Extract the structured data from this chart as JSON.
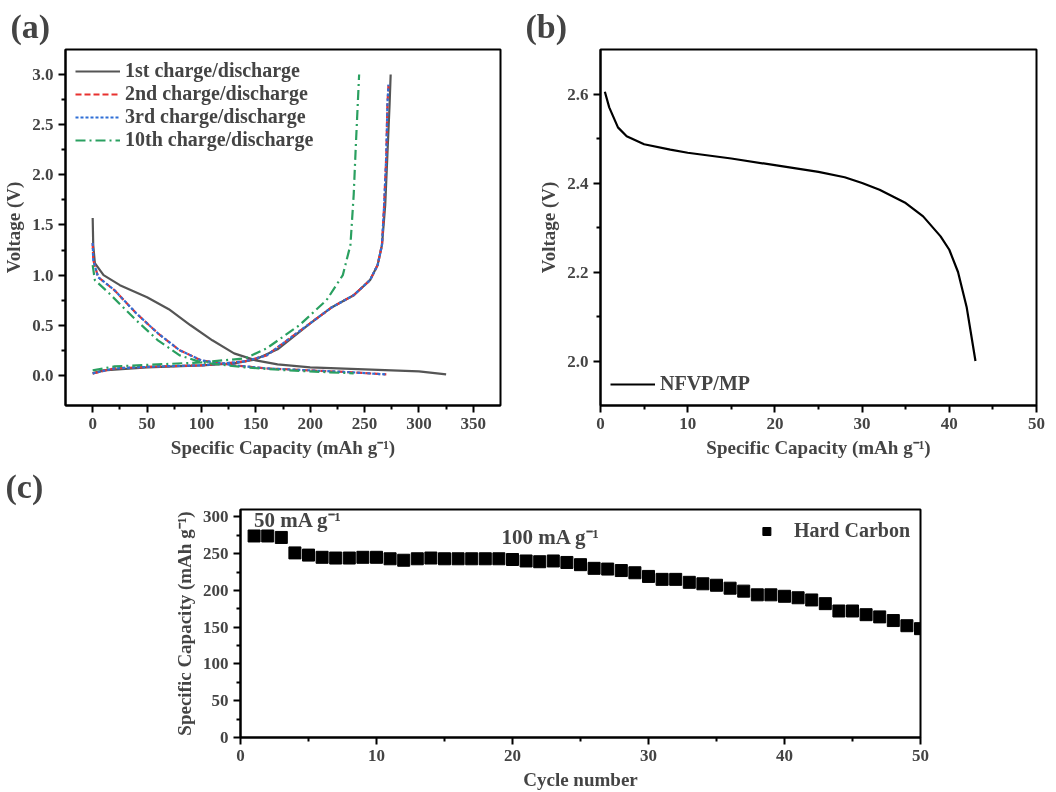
{
  "chart_data": [
    {
      "type": "line",
      "title": "(a)",
      "xlabel": "Specific Capacity (mAh g⁻¹)",
      "ylabel": "Voltage (V)",
      "xlim": [
        -25,
        375
      ],
      "xticks": [
        0,
        50,
        100,
        150,
        200,
        250,
        300,
        350
      ],
      "ylim": [
        -0.3,
        3.25
      ],
      "yticks": [
        {
          "value": 0,
          "label": "0.0"
        },
        0.5,
        {
          "value": 1,
          "label": "1.0"
        },
        1.5,
        {
          "value": 2,
          "label": "2.0"
        },
        2.5,
        {
          "value": 3,
          "label": "3.0"
        }
      ],
      "legend": "top left",
      "series": [
        {
          "name": "1st charge/discharge",
          "color": "#555555",
          "line_style": "solid",
          "x": [
            0,
            0.5,
            2,
            10,
            25,
            50,
            70,
            90,
            110,
            130,
            150,
            170,
            200,
            250,
            300,
            325,
            null,
            0,
            10,
            50,
            100,
            130,
            150,
            170,
            200,
            220,
            240,
            255,
            262,
            266,
            269,
            271,
            273,
            274
          ],
          "values": [
            1.57,
            1.3,
            1.12,
            1.0,
            0.9,
            0.78,
            0.66,
            0.5,
            0.35,
            0.22,
            0.15,
            0.11,
            0.08,
            0.06,
            0.04,
            0.01,
            null,
            0.02,
            0.05,
            0.08,
            0.1,
            0.12,
            0.16,
            0.26,
            0.52,
            0.68,
            0.8,
            0.95,
            1.1,
            1.3,
            1.7,
            2.2,
            2.7,
            3.0
          ]
        },
        {
          "name": "2nd charge/discharge",
          "color": "#e8312f",
          "line_style": "dashed",
          "x": [
            0,
            0.5,
            5,
            20,
            40,
            60,
            80,
            100,
            130,
            160,
            200,
            240,
            270,
            null,
            0,
            20,
            60,
            100,
            140,
            160,
            200,
            220,
            240,
            255,
            262,
            266,
            268,
            270,
            271,
            272
          ],
          "values": [
            1.32,
            1.15,
            0.98,
            0.85,
            0.62,
            0.42,
            0.25,
            0.15,
            0.1,
            0.07,
            0.05,
            0.03,
            0.01,
            null,
            0.02,
            0.07,
            0.09,
            0.1,
            0.14,
            0.2,
            0.52,
            0.68,
            0.8,
            0.95,
            1.1,
            1.3,
            1.7,
            2.2,
            2.7,
            2.9
          ]
        },
        {
          "name": "3rd charge/discharge",
          "color": "#2f6fd6",
          "line_style": "dotted",
          "x": [
            0,
            0.5,
            5,
            20,
            40,
            60,
            80,
            100,
            130,
            160,
            200,
            240,
            270,
            null,
            0,
            20,
            60,
            100,
            140,
            160,
            200,
            220,
            240,
            255,
            262,
            266,
            268,
            270,
            271,
            272
          ],
          "values": [
            1.32,
            1.15,
            0.98,
            0.85,
            0.62,
            0.42,
            0.25,
            0.15,
            0.1,
            0.07,
            0.05,
            0.03,
            0.01,
            null,
            0.02,
            0.07,
            0.09,
            0.1,
            0.14,
            0.2,
            0.52,
            0.68,
            0.8,
            0.95,
            1.1,
            1.3,
            1.7,
            2.2,
            2.7,
            2.9
          ]
        },
        {
          "name": "10th charge/discharge",
          "color": "#2aa060",
          "line_style": "dashdot",
          "x": [
            0,
            2,
            15,
            40,
            60,
            80,
            100,
            140,
            180,
            240,
            null,
            0,
            20,
            60,
            100,
            140,
            160,
            190,
            215,
            230,
            237,
            240,
            242,
            245
          ],
          "values": [
            1.1,
            0.95,
            0.82,
            0.55,
            0.35,
            0.2,
            0.13,
            0.08,
            0.05,
            0.02,
            null,
            0.05,
            0.09,
            0.11,
            0.13,
            0.17,
            0.27,
            0.5,
            0.75,
            1.0,
            1.3,
            1.8,
            2.3,
            3.0
          ]
        }
      ]
    },
    {
      "type": "line",
      "title": "(b)",
      "xlabel": "Specific Capacity (mAh g⁻¹)",
      "ylabel": "Voltage (V)",
      "xlim": [
        0,
        50
      ],
      "xticks": [
        0,
        10,
        20,
        30,
        40,
        50
      ],
      "ylim": [
        1.9,
        2.7
      ],
      "yticks": [
        {
          "value": 2,
          "label": "2.0"
        },
        2.2,
        2.4,
        2.6
      ],
      "legend": "bottom left",
      "series": [
        {
          "name": "NFVP/MP",
          "color": "#000000",
          "line_style": "solid",
          "x": [
            0.5,
            1,
            2,
            3,
            5,
            8,
            10,
            15,
            20,
            25,
            28,
            30,
            32,
            35,
            37,
            39,
            40,
            41,
            42,
            42.5,
            43
          ],
          "values": [
            2.605,
            2.57,
            2.525,
            2.505,
            2.487,
            2.475,
            2.468,
            2.455,
            2.44,
            2.425,
            2.413,
            2.4,
            2.385,
            2.355,
            2.325,
            2.28,
            2.25,
            2.2,
            2.12,
            2.06,
            2.0
          ]
        }
      ]
    },
    {
      "type": "scatter",
      "title": "(c)",
      "xlabel": "Cycle number",
      "ylabel": "Specific Capacity (mAh g⁻¹)",
      "xlim": [
        0,
        50
      ],
      "xticks": [
        0,
        10,
        20,
        30,
        40,
        50
      ],
      "ylim": [
        0,
        310
      ],
      "yticks": [
        0,
        50,
        100,
        150,
        200,
        250,
        300
      ],
      "legend": "top right",
      "marker": "square",
      "annotations": [
        "50 mA g⁻¹",
        "100 mA g⁻¹"
      ],
      "series": [
        {
          "name": "Hard Carbon",
          "color": "#000000",
          "x": [
            1,
            2,
            3,
            4,
            5,
            6,
            7,
            8,
            9,
            10,
            11,
            12,
            13,
            14,
            15,
            16,
            17,
            18,
            19,
            20,
            21,
            22,
            23,
            24,
            25,
            26,
            27,
            28,
            29,
            30,
            31,
            32,
            33,
            34,
            35,
            36,
            37,
            38,
            39,
            40,
            41,
            42,
            43,
            44,
            45,
            46,
            47,
            48,
            49,
            50
          ],
          "values": [
            274,
            274,
            272,
            251,
            248,
            245,
            244,
            244,
            245,
            245,
            243,
            241,
            243,
            244,
            243,
            243,
            243,
            243,
            243,
            242,
            240,
            239,
            240,
            238,
            235,
            230,
            229,
            227,
            224,
            219,
            215,
            215,
            211,
            209,
            207,
            203,
            199,
            194,
            194,
            192,
            190,
            187,
            182,
            172,
            172,
            167,
            164,
            159,
            152,
            148
          ]
        }
      ]
    }
  ]
}
